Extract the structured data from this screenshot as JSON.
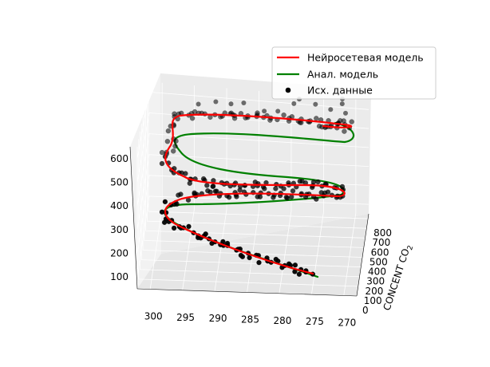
{
  "chart_data": {
    "type": "line3d-scatter",
    "colors": {
      "nn_model": "#ff0000",
      "anal_model": "#008000",
      "data": "#000000"
    },
    "legend": {
      "placement": "top-right",
      "entries": [
        {
          "label": "Нейросетевая модель",
          "kind": "line",
          "color": "#ff0000"
        },
        {
          "label": "Анал. модель",
          "kind": "line",
          "color": "#008000"
        },
        {
          "label": "Исх. данные",
          "kind": "marker",
          "color": "#000000"
        }
      ]
    },
    "x_axis": {
      "ticks": [
        "300",
        "295",
        "290",
        "285",
        "280",
        "275",
        "270"
      ],
      "range": [
        268,
        302
      ]
    },
    "y_axis": {
      "label_main": "CONCENT CO",
      "label_sub": "2",
      "ticks": [
        "0",
        "100",
        "200",
        "300",
        "400",
        "500",
        "600",
        "700",
        "800"
      ],
      "range": [
        0,
        850
      ]
    },
    "z_axis": {
      "ticks": [
        "100",
        "200",
        "300",
        "400",
        "500",
        "600"
      ],
      "range": [
        50,
        650
      ]
    },
    "grid": true,
    "series": [
      {
        "name": "Нейросетевая модель",
        "style": "line",
        "color": "#ff0000"
      },
      {
        "name": "Анал. модель",
        "style": "line",
        "color": "#008000"
      },
      {
        "name": "Исх. данные",
        "style": "scatter",
        "color": "#000000"
      }
    ]
  }
}
